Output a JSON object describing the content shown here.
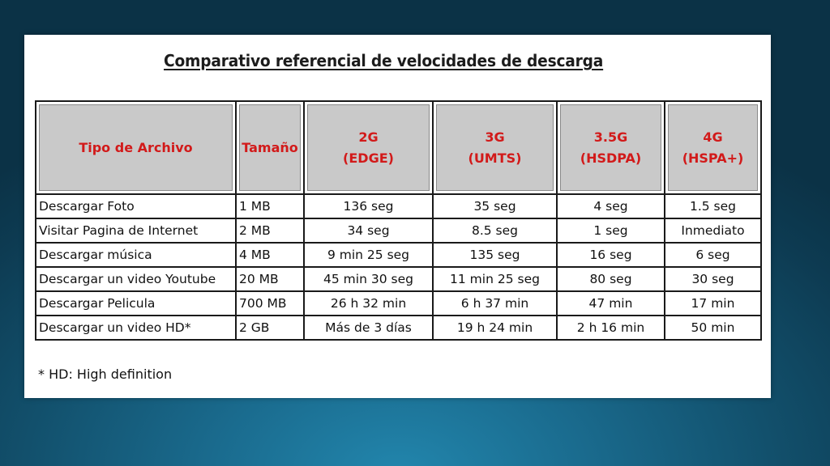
{
  "title": "Comparativo referencial de velocidades de descarga",
  "table": {
    "headers": [
      {
        "lines": [
          "Tipo de Archivo"
        ]
      },
      {
        "lines": [
          "Tamaño"
        ]
      },
      {
        "lines": [
          "2G",
          "(EDGE)"
        ]
      },
      {
        "lines": [
          "3G",
          "(UMTS)"
        ]
      },
      {
        "lines": [
          "3.5G",
          "(HSDPA)"
        ]
      },
      {
        "lines": [
          "4G",
          "(HSPA+)"
        ]
      }
    ],
    "rows": [
      [
        "Descargar Foto",
        "1 MB",
        "136 seg",
        "35 seg",
        "4 seg",
        "1.5 seg"
      ],
      [
        "Visitar Pagina de Internet",
        "2 MB",
        "34 seg",
        "8.5 seg",
        "1 seg",
        "Inmediato"
      ],
      [
        "Descargar música",
        "4 MB",
        "9 min 25 seg",
        "135 seg",
        "16 seg",
        "6 seg"
      ],
      [
        "Descargar un video Youtube",
        "20 MB",
        "45 min 30 seg",
        "11 min 25 seg",
        "80 seg",
        "30 seg"
      ],
      [
        "Descargar Pelicula",
        "700 MB",
        "26 h 32 min",
        "6 h 37 min",
        "47 min",
        "17 min"
      ],
      [
        "Descargar un video HD*",
        "2 GB",
        "Más de 3 días",
        "19 h 24 min",
        "2 h 16 min",
        "50 min"
      ]
    ]
  },
  "footnote": "* HD: High definition",
  "colors": {
    "header_text": "#d21a1a",
    "header_bg": "#c9c9c9",
    "background": "#12506c",
    "card": "#ffffff"
  }
}
